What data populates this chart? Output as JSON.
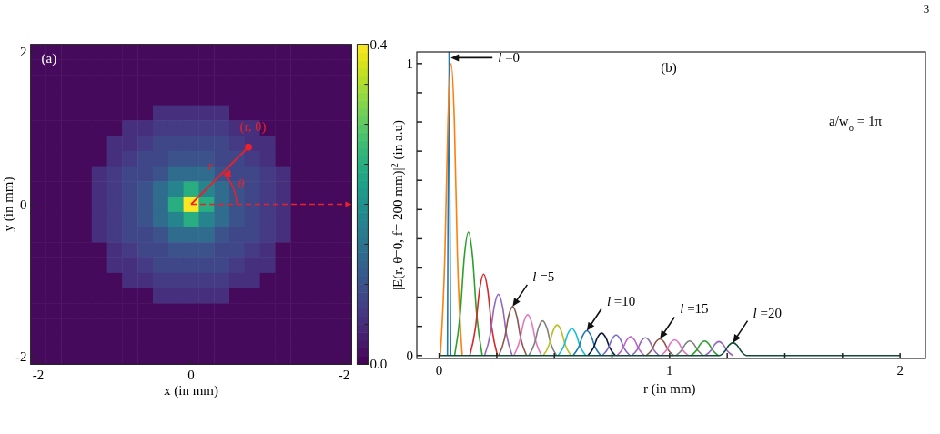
{
  "chart_data": [
    {
      "type": "heatmap",
      "xlabel": "x (in mm)",
      "ylabel": "y (in mm)",
      "categories": [
        "-2",
        null,
        null,
        null,
        null,
        null,
        null,
        null,
        null,
        null,
        "0",
        null,
        null,
        null,
        null,
        null,
        null,
        null,
        null,
        null,
        "-2"
      ],
      "y_categories": [
        "2",
        null,
        null,
        null,
        null,
        null,
        null,
        null,
        null,
        null,
        "0",
        null,
        null,
        null,
        null,
        null,
        null,
        null,
        null,
        null,
        "-2"
      ],
      "clim": [
        0,
        0.4
      ],
      "cticks": [
        {
          "value": 0,
          "label": "0.0"
        },
        {
          "value": 0.05,
          "label": null
        },
        {
          "value": 0.1,
          "label": null
        },
        {
          "value": 0.15,
          "label": null
        },
        {
          "value": 0.2,
          "label": null
        },
        {
          "value": 0.25,
          "label": null
        },
        {
          "value": 0.3,
          "label": null
        },
        {
          "value": 0.35,
          "label": null
        },
        {
          "value": 0.4,
          "label": "0.4"
        }
      ],
      "annotations": [
        "(a)",
        "(r, θ)",
        "r",
        "θ"
      ],
      "cells": [
        [
          0.01,
          0.01,
          0.01,
          0.01,
          0.01,
          0.01,
          0.01,
          0.01,
          0.01,
          0.01,
          0.01,
          0.01,
          0.01,
          0.01,
          0.01,
          0.01,
          0.01,
          0.01,
          0.01,
          0.01,
          0.01
        ],
        [
          0.01,
          0.01,
          0.01,
          0.01,
          0.01,
          0.01,
          0.01,
          0.01,
          0.01,
          0.01,
          0.01,
          0.01,
          0.01,
          0.01,
          0.01,
          0.01,
          0.01,
          0.01,
          0.01,
          0.01,
          0.01
        ],
        [
          0.01,
          0.01,
          0.01,
          0.01,
          0.01,
          0.01,
          0.01,
          0.01,
          0.01,
          0.01,
          0.01,
          0.01,
          0.01,
          0.01,
          0.01,
          0.01,
          0.01,
          0.01,
          0.01,
          0.01,
          0.01
        ],
        [
          0.01,
          0.01,
          0.01,
          0.01,
          0.01,
          0.01,
          0.01,
          0.01,
          0.01,
          0.01,
          0.01,
          0.01,
          0.01,
          0.01,
          0.01,
          0.01,
          0.01,
          0.01,
          0.01,
          0.01,
          0.01
        ],
        [
          0.01,
          0.01,
          0.01,
          0.01,
          0.01,
          0.01,
          0.01,
          0.01,
          0.055,
          0.055,
          0.055,
          0.055,
          0.055,
          0.01,
          0.01,
          0.01,
          0.01,
          0.01,
          0.01,
          0.01,
          0.01
        ],
        [
          0.01,
          0.01,
          0.01,
          0.01,
          0.01,
          0.01,
          0.055,
          0.055,
          0.07,
          0.07,
          0.07,
          0.07,
          0.07,
          0.055,
          0.055,
          0.01,
          0.01,
          0.01,
          0.01,
          0.01,
          0.01
        ],
        [
          0.01,
          0.01,
          0.01,
          0.01,
          0.01,
          0.055,
          0.055,
          0.07,
          0.085,
          0.085,
          0.085,
          0.085,
          0.085,
          0.07,
          0.055,
          0.055,
          0.01,
          0.01,
          0.01,
          0.01,
          0.01
        ],
        [
          0.01,
          0.01,
          0.01,
          0.01,
          0.01,
          0.055,
          0.07,
          0.085,
          0.085,
          0.1,
          0.1,
          0.1,
          0.085,
          0.085,
          0.07,
          0.055,
          0.01,
          0.01,
          0.01,
          0.01,
          0.01
        ],
        [
          0.01,
          0.01,
          0.01,
          0.01,
          0.055,
          0.07,
          0.085,
          0.085,
          0.1,
          0.14,
          0.14,
          0.14,
          0.1,
          0.085,
          0.085,
          0.07,
          0.055,
          0.01,
          0.01,
          0.01,
          0.01
        ],
        [
          0.01,
          0.01,
          0.01,
          0.01,
          0.055,
          0.07,
          0.085,
          0.1,
          0.14,
          0.18,
          0.25,
          0.18,
          0.14,
          0.1,
          0.085,
          0.07,
          0.055,
          0.01,
          0.01,
          0.01,
          0.01
        ],
        [
          0.01,
          0.01,
          0.01,
          0.01,
          0.055,
          0.07,
          0.085,
          0.1,
          0.14,
          0.25,
          0.4,
          0.25,
          0.14,
          0.1,
          0.085,
          0.07,
          0.055,
          0.01,
          0.01,
          0.01,
          0.01
        ],
        [
          0.01,
          0.01,
          0.01,
          0.01,
          0.055,
          0.07,
          0.085,
          0.1,
          0.14,
          0.18,
          0.25,
          0.18,
          0.14,
          0.1,
          0.085,
          0.07,
          0.055,
          0.01,
          0.01,
          0.01,
          0.01
        ],
        [
          0.01,
          0.01,
          0.01,
          0.01,
          0.055,
          0.07,
          0.085,
          0.085,
          0.1,
          0.14,
          0.14,
          0.14,
          0.1,
          0.085,
          0.085,
          0.07,
          0.055,
          0.01,
          0.01,
          0.01,
          0.01
        ],
        [
          0.01,
          0.01,
          0.01,
          0.01,
          0.01,
          0.055,
          0.07,
          0.085,
          0.085,
          0.1,
          0.1,
          0.1,
          0.085,
          0.085,
          0.07,
          0.055,
          0.01,
          0.01,
          0.01,
          0.01,
          0.01
        ],
        [
          0.01,
          0.01,
          0.01,
          0.01,
          0.01,
          0.055,
          0.055,
          0.07,
          0.085,
          0.085,
          0.085,
          0.085,
          0.085,
          0.07,
          0.055,
          0.055,
          0.01,
          0.01,
          0.01,
          0.01,
          0.01
        ],
        [
          0.01,
          0.01,
          0.01,
          0.01,
          0.01,
          0.01,
          0.055,
          0.055,
          0.07,
          0.07,
          0.07,
          0.07,
          0.07,
          0.055,
          0.055,
          0.01,
          0.01,
          0.01,
          0.01,
          0.01,
          0.01
        ],
        [
          0.01,
          0.01,
          0.01,
          0.01,
          0.01,
          0.01,
          0.01,
          0.01,
          0.055,
          0.055,
          0.055,
          0.055,
          0.055,
          0.01,
          0.01,
          0.01,
          0.01,
          0.01,
          0.01,
          0.01,
          0.01
        ],
        [
          0.01,
          0.01,
          0.01,
          0.01,
          0.01,
          0.01,
          0.01,
          0.01,
          0.01,
          0.01,
          0.01,
          0.01,
          0.01,
          0.01,
          0.01,
          0.01,
          0.01,
          0.01,
          0.01,
          0.01,
          0.01
        ],
        [
          0.01,
          0.01,
          0.01,
          0.01,
          0.01,
          0.01,
          0.01,
          0.01,
          0.01,
          0.01,
          0.01,
          0.01,
          0.01,
          0.01,
          0.01,
          0.01,
          0.01,
          0.01,
          0.01,
          0.01,
          0.01
        ],
        [
          0.01,
          0.01,
          0.01,
          0.01,
          0.01,
          0.01,
          0.01,
          0.01,
          0.01,
          0.01,
          0.01,
          0.01,
          0.01,
          0.01,
          0.01,
          0.01,
          0.01,
          0.01,
          0.01,
          0.01,
          0.01
        ],
        [
          0.01,
          0.01,
          0.01,
          0.01,
          0.01,
          0.01,
          0.01,
          0.01,
          0.01,
          0.01,
          0.01,
          0.01,
          0.01,
          0.01,
          0.01,
          0.01,
          0.01,
          0.01,
          0.01,
          0.01,
          0.01
        ]
      ]
    },
    {
      "type": "line",
      "xlabel": "r (in mm)",
      "ylabel": "|E(r, θ=0, f= 200 mm)|$^{2}$ (in a.u)",
      "xlim": [
        -0.097,
        2.11
      ],
      "xticks": [
        0,
        {
          "value": 0.25,
          "label": null
        },
        {
          "value": 0.5,
          "label": null
        },
        {
          "value": 0.75,
          "label": null
        },
        1,
        {
          "value": 1.25,
          "label": null
        },
        {
          "value": 1.5,
          "label": null
        },
        {
          "value": 1.75,
          "label": null
        },
        2
      ],
      "ylim": [
        -0.01,
        1.04
      ],
      "yticks": [
        0,
        {
          "value": 0.1,
          "label": null
        },
        {
          "value": 0.2,
          "label": null
        },
        {
          "value": 0.3,
          "label": null
        },
        {
          "value": 0.4,
          "label": null
        },
        {
          "value": 0.5,
          "label": null
        },
        {
          "value": 0.6,
          "label": null
        },
        {
          "value": 0.7,
          "label": null
        },
        {
          "value": 0.8,
          "label": null
        },
        {
          "value": 0.9,
          "label": null
        },
        1
      ],
      "annotations": [
        {
          "text": "l =0",
          "x": 0.05,
          "y": 1.02
        },
        {
          "text": "l =5",
          "x": 0.319,
          "y": 0.168
        },
        {
          "text": "l =10",
          "x": 0.641,
          "y": 0.085
        },
        {
          "text": "l =15",
          "x": 0.958,
          "y": 0.057
        },
        {
          "text": "l =20",
          "x": 1.275,
          "y": 0.044
        },
        "(b)",
        "a/w$_{o}$ = 1π",
        "3"
      ],
      "series": [
        {
          "color": "#1f77b4",
          "x": [
            0.036,
            0.043,
            0.05
          ],
          "values": [
            0,
            1.04,
            0
          ]
        },
        {
          "color": "#ff7f0e",
          "x": [
            0.005,
            0.025,
            0.038,
            0.052,
            0.066,
            0.079,
            0.1
          ],
          "values": [
            0,
            0.35,
            0.8,
            1,
            0.8,
            0.35,
            0
          ]
        },
        {
          "color": "#2ca02c",
          "x": [
            0.067,
            0.092,
            0.109,
            0.127,
            0.145,
            0.162,
            0.187
          ],
          "values": [
            0,
            0.148,
            0.338,
            0.423,
            0.338,
            0.148,
            0
          ]
        },
        {
          "color": "#d62728",
          "x": [
            0.133,
            0.158,
            0.175,
            0.193,
            0.211,
            0.228,
            0.253
          ],
          "values": [
            0,
            0.098,
            0.223,
            0.279,
            0.223,
            0.098,
            0
          ]
        },
        {
          "color": "#9467bd",
          "x": [
            0.197,
            0.222,
            0.239,
            0.257,
            0.275,
            0.292,
            0.317
          ],
          "values": [
            0,
            0.074,
            0.168,
            0.21,
            0.168,
            0.074,
            0
          ]
        },
        {
          "color": "#8c564b",
          "x": [
            0.259,
            0.284,
            0.301,
            0.319,
            0.337,
            0.354,
            0.379
          ],
          "values": [
            0,
            0.059,
            0.134,
            0.168,
            0.134,
            0.059,
            0
          ]
        },
        {
          "color": "#e377c2",
          "x": [
            0.324,
            0.349,
            0.366,
            0.384,
            0.402,
            0.419,
            0.444
          ],
          "values": [
            0,
            0.049,
            0.112,
            0.14,
            0.112,
            0.049,
            0
          ]
        },
        {
          "color": "#7f7f7f",
          "x": [
            0.389,
            0.414,
            0.431,
            0.449,
            0.467,
            0.484,
            0.509
          ],
          "values": [
            0,
            0.042,
            0.095,
            0.119,
            0.095,
            0.042,
            0
          ]
        },
        {
          "color": "#bcbd22",
          "x": [
            0.452,
            0.477,
            0.494,
            0.512,
            0.53,
            0.547,
            0.572
          ],
          "values": [
            0,
            0.037,
            0.084,
            0.105,
            0.084,
            0.037,
            0
          ]
        },
        {
          "color": "#17becf",
          "x": [
            0.516,
            0.541,
            0.558,
            0.576,
            0.594,
            0.611,
            0.636
          ],
          "values": [
            0,
            0.033,
            0.074,
            0.093,
            0.074,
            0.033,
            0
          ]
        },
        {
          "color": "#1f77b4",
          "x": [
            0.581,
            0.606,
            0.623,
            0.641,
            0.659,
            0.676,
            0.701
          ],
          "values": [
            0,
            0.03,
            0.068,
            0.085,
            0.068,
            0.03,
            0
          ]
        },
        {
          "color": "#0b1a3a",
          "x": [
            0.645,
            0.67,
            0.687,
            0.705,
            0.723,
            0.74,
            0.765
          ],
          "values": [
            0,
            0.027,
            0.062,
            0.077,
            0.062,
            0.027,
            0
          ]
        },
        {
          "color": "#7b68c8",
          "x": [
            0.708,
            0.733,
            0.75,
            0.768,
            0.786,
            0.803,
            0.828
          ],
          "values": [
            0,
            0.025,
            0.056,
            0.07,
            0.056,
            0.025,
            0
          ]
        },
        {
          "color": "#c060c0",
          "x": [
            0.771,
            0.796,
            0.813,
            0.831,
            0.849,
            0.866,
            0.891
          ],
          "values": [
            0,
            0.023,
            0.052,
            0.065,
            0.052,
            0.023,
            0
          ]
        },
        {
          "color": "#9467bd",
          "x": [
            0.835,
            0.86,
            0.877,
            0.895,
            0.913,
            0.93,
            0.955
          ],
          "values": [
            0,
            0.021,
            0.049,
            0.061,
            0.049,
            0.021,
            0
          ]
        },
        {
          "color": "#8c564b",
          "x": [
            0.898,
            0.923,
            0.94,
            0.958,
            0.976,
            0.993,
            1.018
          ],
          "values": [
            0,
            0.02,
            0.046,
            0.057,
            0.046,
            0.02,
            0
          ]
        },
        {
          "color": "#e377c2",
          "x": [
            0.962,
            0.987,
            1.004,
            1.022,
            1.04,
            1.057,
            1.082
          ],
          "values": [
            0,
            0.019,
            0.043,
            0.054,
            0.043,
            0.019,
            0
          ]
        },
        {
          "color": "#7f7f7f",
          "x": [
            1.027,
            1.052,
            1.069,
            1.087,
            1.105,
            1.122,
            1.147
          ],
          "values": [
            0,
            0.018,
            0.04,
            0.05,
            0.04,
            0.018,
            0
          ]
        },
        {
          "color": "#2ca02c",
          "x": [
            1.092,
            1.117,
            1.134,
            1.152,
            1.17,
            1.187,
            1.212
          ],
          "values": [
            0,
            0.018,
            0.04,
            0.05,
            0.04,
            0.018,
            0
          ]
        },
        {
          "color": "#9467bd",
          "x": [
            1.154,
            1.179,
            1.196,
            1.214,
            1.232,
            1.249,
            1.274
          ],
          "values": [
            0,
            0.017,
            0.038,
            0.048,
            0.038,
            0.017,
            0
          ]
        },
        {
          "color": "#0f4a3a",
          "x": [
            0,
            1.215,
            1.24,
            1.257,
            1.275,
            1.293,
            1.31,
            1.335,
            2
          ],
          "values": [
            0,
            0,
            0.015,
            0.035,
            0.044,
            0.035,
            0.015,
            0,
            0
          ]
        }
      ]
    }
  ]
}
